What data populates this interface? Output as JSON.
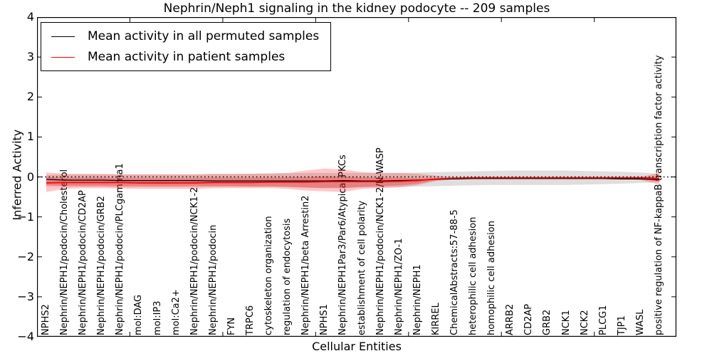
{
  "chart_data": {
    "type": "line",
    "title": "Nephrin/Neph1 signaling in the kidney podocyte -- 209 samples",
    "xlabel": "Cellular Entities",
    "ylabel": "Inferred Activity",
    "ylim": [
      -4,
      4
    ],
    "ytick_values": [
      4,
      3,
      2,
      1,
      0,
      -1,
      -2,
      -3,
      -4
    ],
    "ytick_labels": [
      "4",
      "3",
      "2",
      "1",
      "0",
      "−1",
      "−2",
      "−3",
      "−4"
    ],
    "xtick_major_units": [
      5,
      10,
      15,
      20,
      25,
      30
    ],
    "grid": false,
    "legend_position": "upper left",
    "zero_line": {
      "value": 0,
      "style": "dotted",
      "color": "#000000"
    },
    "categories": [
      "NPHS2",
      "Nephrin/NEPH1/podocin/Cholesterol",
      "Nephrin/NEPH1/podocin/CD2AP",
      "Nephrin/NEPH1/podocin/GRB2",
      "Nephrin/NEPH1/podocin/PLCgamma1",
      "mol:DAG",
      "mol:IP3",
      "mol:Ca2+",
      "Nephrin/NEPH1/podocin/NCK1-2",
      "Nephrin/NEPH1/podocin",
      "FYN",
      "TRPC6",
      "cytoskeleton organization",
      "regulation of endocytosis",
      "Nephrin/NEPH1/beta Arrestin2",
      "NPHS1",
      "Nephrin/NEPH1Par3/Par6/Atypical PKCs",
      "establishment of cell polarity",
      "Nephrin/NEPH1/podocin/NCK1-2/N-WASP",
      "Nephrin/NEPH1/ZO-1",
      "Nephrin/NEPH1",
      "KIRREL",
      "ChemicalAbstracts:57-88-5",
      "heterophilic cell adhesion",
      "homophilic cell adhesion",
      "ARRB2",
      "CD2AP",
      "GRB2",
      "NCK1",
      "NCK2",
      "PLCG1",
      "TJP1",
      "WASL",
      "positive regulation of NF-kappaB transcription factor activity"
    ],
    "series": [
      {
        "name": "Mean activity in all permuted samples",
        "color": "#000000",
        "width": 1.3,
        "values": [
          -0.06,
          -0.08,
          -0.08,
          -0.08,
          -0.09,
          -0.09,
          -0.09,
          -0.09,
          -0.09,
          -0.1,
          -0.1,
          -0.1,
          -0.1,
          -0.1,
          -0.1,
          -0.1,
          -0.09,
          -0.1,
          -0.1,
          -0.09,
          -0.08,
          -0.06,
          -0.05,
          -0.04,
          -0.04,
          -0.04,
          -0.04,
          -0.04,
          -0.04,
          -0.04,
          -0.04,
          -0.05,
          -0.05,
          -0.07
        ]
      },
      {
        "name": "Mean activity in patient samples",
        "color": "#ff0000",
        "width": 1.7,
        "values": [
          -0.15,
          -0.14,
          -0.14,
          -0.14,
          -0.14,
          -0.15,
          -0.15,
          -0.15,
          -0.15,
          -0.14,
          -0.14,
          -0.14,
          -0.13,
          -0.13,
          -0.13,
          -0.12,
          -0.12,
          -0.12,
          -0.12,
          -0.11,
          -0.09,
          -0.05,
          -0.03,
          -0.02,
          -0.02,
          -0.02,
          -0.02,
          -0.02,
          -0.02,
          -0.02,
          -0.02,
          -0.02,
          -0.02,
          -0.045
        ]
      }
    ],
    "bands": [
      {
        "name": "permuted-std-band",
        "color": "rgba(0,0,0,0.13)",
        "upper": [
          0.05,
          0.06,
          0.06,
          0.06,
          0.06,
          0.06,
          0.06,
          0.06,
          0.06,
          0.07,
          0.07,
          0.08,
          0.08,
          0.09,
          0.1,
          0.1,
          0.1,
          0.1,
          0.1,
          0.1,
          0.11,
          0.12,
          0.13,
          0.14,
          0.15,
          0.16,
          0.16,
          0.16,
          0.16,
          0.15,
          0.14,
          0.13,
          0.11,
          0.08
        ],
        "lower": [
          -0.2,
          -0.21,
          -0.21,
          -0.21,
          -0.22,
          -0.22,
          -0.22,
          -0.22,
          -0.22,
          -0.23,
          -0.23,
          -0.24,
          -0.24,
          -0.25,
          -0.26,
          -0.27,
          -0.27,
          -0.26,
          -0.26,
          -0.25,
          -0.24,
          -0.23,
          -0.22,
          -0.21,
          -0.2,
          -0.2,
          -0.2,
          -0.2,
          -0.2,
          -0.19,
          -0.18,
          -0.17,
          -0.15,
          -0.13
        ]
      },
      {
        "name": "patient-std-band-outer",
        "color": "rgba(255,0,0,0.22)",
        "upper": [
          0.11,
          0.08,
          0.08,
          0.08,
          0.07,
          0.07,
          0.07,
          0.07,
          0.07,
          0.08,
          0.08,
          0.08,
          0.09,
          0.1,
          0.16,
          0.21,
          0.18,
          0.12,
          0.1,
          0.1,
          0.08,
          0.03,
          -0.01,
          -0.01,
          -0.01,
          -0.01,
          -0.01,
          -0.01,
          -0.01,
          -0.01,
          -0.01,
          -0.01,
          0.0,
          0.1
        ],
        "lower": [
          -0.38,
          -0.3,
          -0.28,
          -0.28,
          -0.29,
          -0.3,
          -0.3,
          -0.3,
          -0.3,
          -0.28,
          -0.28,
          -0.28,
          -0.28,
          -0.3,
          -0.34,
          -0.36,
          -0.38,
          -0.3,
          -0.28,
          -0.26,
          -0.2,
          -0.1,
          -0.05,
          -0.03,
          -0.03,
          -0.03,
          -0.03,
          -0.03,
          -0.03,
          -0.03,
          -0.03,
          -0.03,
          -0.08,
          -0.19
        ]
      },
      {
        "name": "patient-std-band-inner",
        "color": "rgba(230,30,30,0.30)",
        "upper": [
          0.0,
          -0.02,
          -0.02,
          -0.02,
          -0.03,
          -0.03,
          -0.03,
          -0.03,
          -0.03,
          -0.02,
          -0.02,
          -0.02,
          -0.02,
          -0.01,
          0.0,
          0.02,
          0.01,
          -0.01,
          -0.02,
          -0.02,
          -0.03,
          -0.03,
          -0.02,
          -0.015,
          -0.015,
          -0.015,
          -0.015,
          -0.015,
          -0.015,
          -0.015,
          -0.015,
          -0.015,
          -0.01,
          0.02
        ],
        "lower": [
          -0.23,
          -0.24,
          -0.24,
          -0.24,
          -0.25,
          -0.25,
          -0.25,
          -0.25,
          -0.25,
          -0.24,
          -0.24,
          -0.24,
          -0.24,
          -0.25,
          -0.27,
          -0.28,
          -0.28,
          -0.25,
          -0.23,
          -0.21,
          -0.17,
          -0.08,
          -0.04,
          -0.025,
          -0.025,
          -0.025,
          -0.025,
          -0.025,
          -0.025,
          -0.025,
          -0.025,
          -0.03,
          -0.04,
          -0.12
        ]
      }
    ]
  }
}
